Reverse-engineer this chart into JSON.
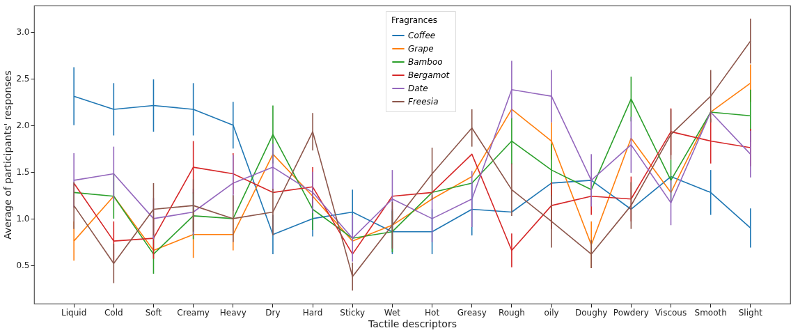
{
  "chart_data": {
    "type": "line",
    "xlabel": "Tactile descriptors",
    "ylabel": "Average of participants' responses",
    "legend_title": "Fragrances",
    "legend": "top",
    "categories": [
      "Liquid",
      "Cold",
      "Soft",
      "Creamy",
      "Heavy",
      "Dry",
      "Hard",
      "Sticky",
      "Wet",
      "Hot",
      "Greasy",
      "Rough",
      "oily",
      "Doughy",
      "Powdery",
      "Viscous",
      "Smooth",
      "Slight"
    ],
    "ylim": [
      0.09,
      3.28
    ],
    "yticks": [
      {
        "value": 0.5,
        "label": "0.5"
      },
      {
        "value": 1,
        "label": "1.0"
      },
      {
        "value": 1.5,
        "label": "1.5"
      },
      {
        "value": 2,
        "label": "2.0"
      },
      {
        "value": 2.5,
        "label": "2.5"
      },
      {
        "value": 3,
        "label": "3.0"
      }
    ],
    "series": [
      {
        "name": "Coffee",
        "color": "#1f77b4",
        "values": [
          2.31,
          2.17,
          2.21,
          2.17,
          2.0,
          0.83,
          1.0,
          1.07,
          0.86,
          0.86,
          1.1,
          1.07,
          1.38,
          1.41,
          1.1,
          1.45,
          1.28,
          0.9
        ],
        "errors": [
          0.31,
          0.28,
          0.28,
          0.28,
          0.25,
          0.21,
          0.19,
          0.24,
          0.24,
          0.24,
          0.28,
          null,
          null,
          null,
          null,
          null,
          0.24,
          0.21
        ]
      },
      {
        "name": "Grape",
        "color": "#ff7f0e",
        "values": [
          0.76,
          1.24,
          0.66,
          0.83,
          0.83,
          1.69,
          1.24,
          0.76,
          0.93,
          1.21,
          1.45,
          2.17,
          1.83,
          0.72,
          1.86,
          1.28,
          2.14,
          2.45
        ],
        "errors": [
          0.21,
          null,
          null,
          0.25,
          0.17,
          null,
          null,
          null,
          null,
          null,
          null,
          null,
          0.2,
          0.25,
          null,
          null,
          null,
          0.2
        ]
      },
      {
        "name": "Bamboo",
        "color": "#2ca02c",
        "values": [
          1.28,
          1.24,
          0.62,
          1.03,
          1.0,
          1.9,
          1.1,
          0.79,
          0.86,
          1.28,
          1.38,
          1.83,
          1.52,
          1.31,
          2.28,
          1.41,
          2.14,
          2.1
        ],
        "errors": [
          null,
          0.24,
          0.21,
          0.25,
          null,
          0.31,
          0.22,
          null,
          0.22,
          null,
          null,
          0.25,
          0.28,
          null,
          0.24,
          0.22,
          null,
          0.28
        ]
      },
      {
        "name": "Bergamot",
        "color": "#d62728",
        "values": [
          1.38,
          0.76,
          0.79,
          1.55,
          1.48,
          1.28,
          1.34,
          0.62,
          1.24,
          1.28,
          1.69,
          0.66,
          1.14,
          1.24,
          1.21,
          1.93,
          1.83,
          1.76
        ],
        "errors": [
          null,
          0.21,
          0.22,
          0.28,
          0.22,
          null,
          0.21,
          null,
          null,
          null,
          null,
          0.18,
          0.25,
          0.2,
          0.24,
          0.25,
          0.24,
          0.2
        ]
      },
      {
        "name": "Date",
        "color": "#9467bd",
        "values": [
          1.41,
          1.48,
          1.0,
          1.07,
          1.38,
          1.55,
          1.28,
          0.79,
          1.21,
          1.0,
          1.21,
          2.38,
          2.31,
          1.41,
          1.79,
          1.17,
          2.14,
          1.69
        ],
        "errors": [
          0.29,
          0.29,
          0.22,
          0.25,
          0.3,
          0.25,
          0.22,
          0.25,
          0.31,
          0.25,
          0.3,
          0.31,
          0.28,
          0.28,
          0.3,
          0.24,
          null,
          0.25
        ]
      },
      {
        "name": "Freesia",
        "color": "#8c564b",
        "values": [
          1.14,
          0.52,
          1.1,
          1.14,
          1.0,
          1.07,
          1.93,
          0.38,
          0.93,
          1.48,
          1.97,
          1.31,
          0.97,
          0.62,
          1.14,
          1.9,
          2.31,
          2.9
        ],
        "errors": [
          0.25,
          0.21,
          0.28,
          0.28,
          0.25,
          0.25,
          0.2,
          0.15,
          0.25,
          0.28,
          0.2,
          0.28,
          0.28,
          0.15,
          0.25,
          0.27,
          0.28,
          0.24
        ]
      }
    ]
  }
}
